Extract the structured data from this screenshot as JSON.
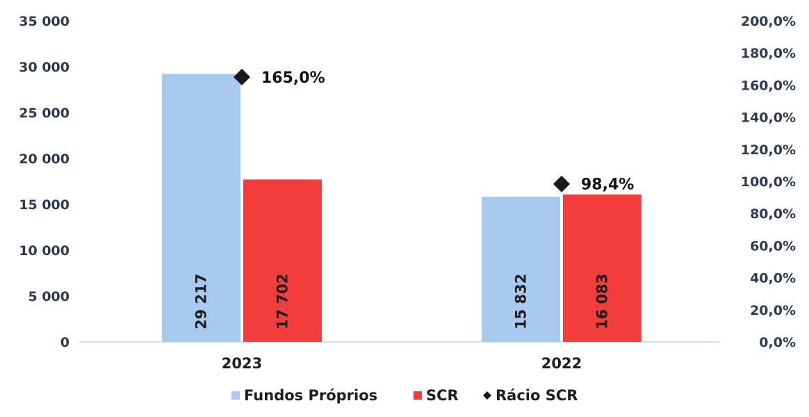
{
  "chart_data": {
    "type": "bar",
    "categories": [
      "2023",
      "2022"
    ],
    "series": [
      {
        "name": "Fundos Próprios",
        "values": [
          29217,
          15832
        ],
        "labels": [
          "29 217",
          "15 832"
        ],
        "color": "#a9c9ef"
      },
      {
        "name": "SCR",
        "values": [
          17702,
          16083
        ],
        "labels": [
          "17 702",
          "16 083"
        ],
        "color": "#f23d3d"
      }
    ],
    "ratio_series": {
      "name": "Rácio SCR",
      "values": [
        165.0,
        98.4
      ],
      "labels": [
        "165,0%",
        "98,4%"
      ],
      "color": "#1a1a1a"
    },
    "y_left": {
      "ylim": [
        0,
        35000
      ],
      "ticks": [
        "0",
        "5 000",
        "10 000",
        "15 000",
        "20 000",
        "25 000",
        "30 000",
        "35 000"
      ]
    },
    "y_right": {
      "ylim": [
        0,
        200
      ],
      "ticks": [
        "0,0%",
        "20,0%",
        "40,0%",
        "60,0%",
        "80,0%",
        "100,0%",
        "120,0%",
        "140,0%",
        "160,0%",
        "180,0%",
        "200,0%"
      ]
    },
    "grid": false,
    "legend": "bottom-center",
    "axis_color": "#cfe1f3"
  }
}
